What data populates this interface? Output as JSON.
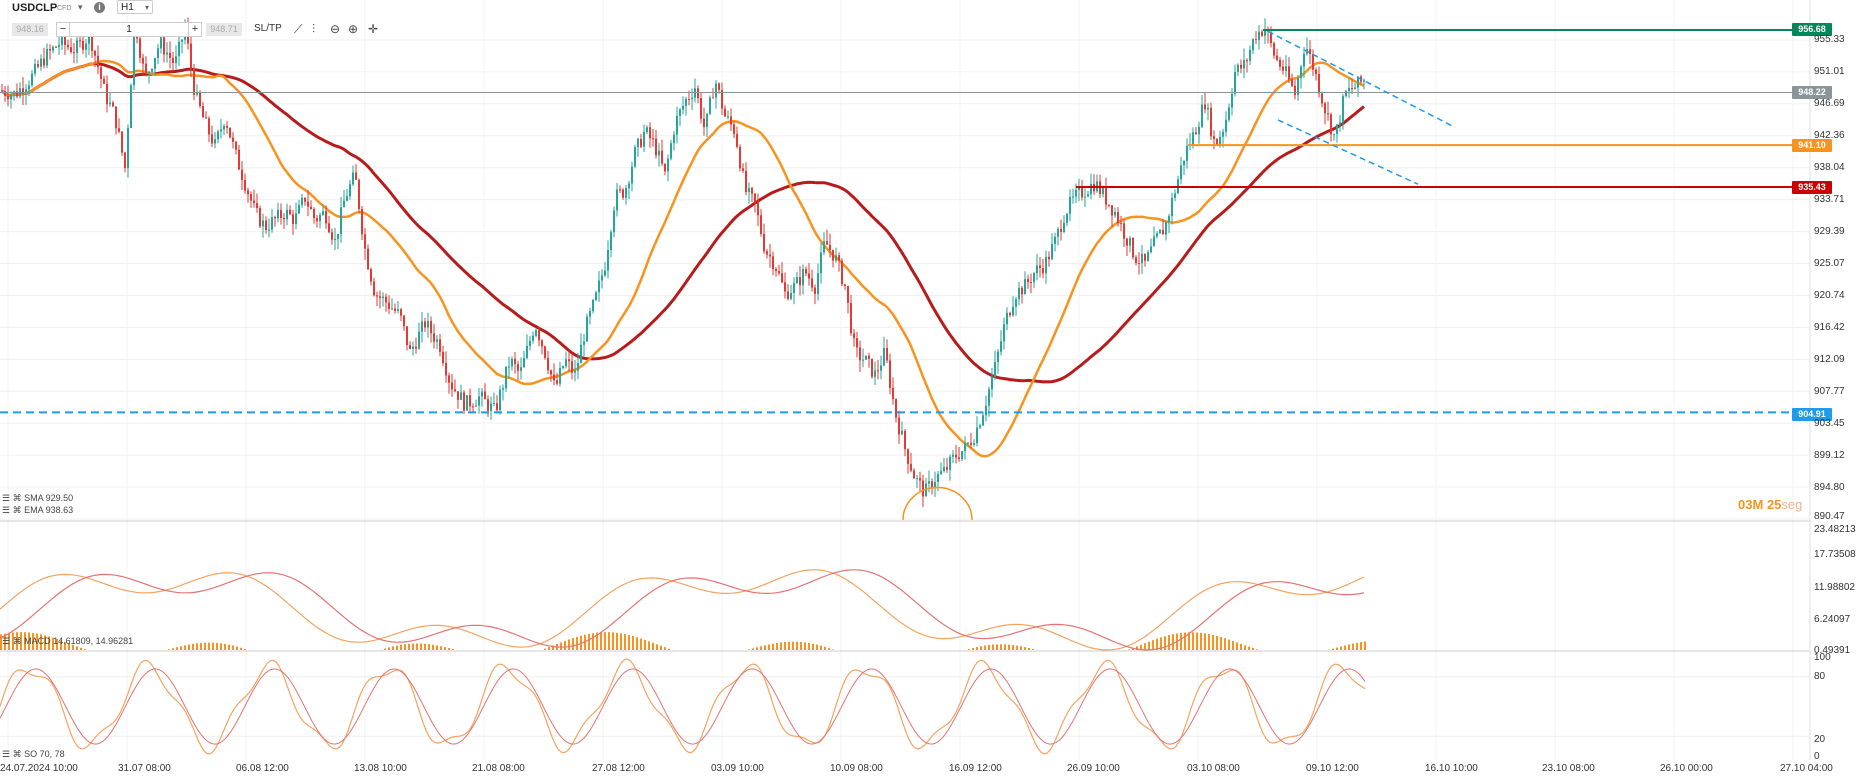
{
  "toolbar": {
    "symbol": "USDCLP",
    "symbol_sub": "CFD",
    "timeframe": "H1",
    "quantity": "1",
    "bid_btn": "948.16",
    "ask_btn": "948.71",
    "sltp_label": "SL/TP",
    "icons": [
      "chart-type-icon",
      "indicators-icon",
      "zoom-out-icon",
      "zoom-in-icon",
      "crosshair-icon"
    ]
  },
  "colors": {
    "bull": "#26a69a",
    "bear": "#e53935",
    "sma": "#b71c1c",
    "ema": "#f7931e",
    "blue_line": "#1e9be9",
    "green_line": "#00875a",
    "current_price": "#8a9499"
  },
  "price_levels": [
    {
      "name": "resistance-high",
      "value": "956.68",
      "color": "#00875a"
    },
    {
      "name": "current-price",
      "value": "948.22",
      "color": "#8a9499"
    },
    {
      "name": "orange-level",
      "value": "941.10",
      "color": "#f7931e"
    },
    {
      "name": "red-level",
      "value": "935.43",
      "color": "#cc0000"
    },
    {
      "name": "blue-support",
      "value": "904.91",
      "color": "#1e9be9"
    }
  ],
  "timer": {
    "minutes": "03",
    "minutes_unit": "M",
    "seconds": "25",
    "seconds_unit": "seg"
  },
  "indicators": {
    "sma_label": "SMA 929.50",
    "ema_label": "EMA 938.63",
    "macd_label": "MACD 14.61809, 14.96281",
    "so_label": "SO 70, 78"
  },
  "chart_data": [
    {
      "type": "candlestick",
      "title": "USDCLP H1",
      "y_ticks": [
        "955.33",
        "951.01",
        "946.69",
        "942.36",
        "938.04",
        "933.71",
        "929.39",
        "925.07",
        "920.74",
        "916.42",
        "912.09",
        "907.77",
        "903.45",
        "899.12",
        "894.80",
        "890.47"
      ],
      "ylim": [
        890.47,
        958.0
      ],
      "x_ticks": [
        "24.07.2024 10:00",
        "31.07 08:00",
        "06.08 12:00",
        "13.08 10:00",
        "21.08 08:00",
        "27.08 12:00",
        "03.09 10:00",
        "10.09 08:00",
        "16.09 12:00",
        "26.09 10:00",
        "03.10 08:00",
        "09.10 12:00",
        "16.10 10:00",
        "23.10 08:00",
        "26.10 00:00",
        "27.10 04:00"
      ],
      "series": [
        {
          "name": "SMA",
          "value": 929.5
        },
        {
          "name": "EMA",
          "value": 938.63
        }
      ],
      "close_path": [
        [
          0,
          948.5
        ],
        [
          15,
          948
        ],
        [
          30,
          950
        ],
        [
          45,
          953
        ],
        [
          60,
          955
        ],
        [
          75,
          954
        ],
        [
          90,
          956
        ],
        [
          105,
          948
        ],
        [
          115,
          945
        ],
        [
          125,
          938
        ],
        [
          135,
          958
        ],
        [
          145,
          950
        ],
        [
          160,
          955
        ],
        [
          175,
          952
        ],
        [
          185,
          957
        ],
        [
          195,
          948
        ],
        [
          205,
          944
        ],
        [
          215,
          941
        ],
        [
          225,
          945
        ],
        [
          235,
          940
        ],
        [
          245,
          936
        ],
        [
          255,
          932
        ],
        [
          265,
          930
        ],
        [
          275,
          931
        ],
        [
          285,
          932
        ],
        [
          295,
          931
        ],
        [
          305,
          934
        ],
        [
          315,
          931
        ],
        [
          325,
          932
        ],
        [
          335,
          928
        ],
        [
          345,
          934
        ],
        [
          355,
          937
        ],
        [
          365,
          927
        ],
        [
          375,
          921
        ],
        [
          385,
          920
        ],
        [
          400,
          918
        ],
        [
          410,
          913
        ],
        [
          425,
          917
        ],
        [
          440,
          914
        ],
        [
          450,
          909
        ],
        [
          465,
          906
        ],
        [
          480,
          907
        ],
        [
          495,
          905
        ],
        [
          510,
          912
        ],
        [
          520,
          910
        ],
        [
          535,
          917
        ],
        [
          545,
          913
        ],
        [
          555,
          908
        ],
        [
          565,
          912
        ],
        [
          575,
          910
        ],
        [
          585,
          916
        ],
        [
          595,
          920
        ],
        [
          605,
          925
        ],
        [
          615,
          934
        ],
        [
          625,
          935
        ],
        [
          635,
          940
        ],
        [
          645,
          943
        ],
        [
          655,
          941
        ],
        [
          665,
          937
        ],
        [
          675,
          944
        ],
        [
          685,
          947
        ],
        [
          695,
          949
        ],
        [
          705,
          943
        ],
        [
          715,
          950
        ],
        [
          725,
          945
        ],
        [
          735,
          943
        ],
        [
          745,
          935
        ],
        [
          755,
          933
        ],
        [
          765,
          927
        ],
        [
          775,
          925
        ],
        [
          785,
          921
        ],
        [
          795,
          922
        ],
        [
          805,
          924
        ],
        [
          815,
          922
        ],
        [
          825,
          928
        ],
        [
          835,
          926
        ],
        [
          845,
          922
        ],
        [
          855,
          913
        ],
        [
          865,
          912
        ],
        [
          875,
          910
        ],
        [
          885,
          913
        ],
        [
          895,
          905
        ],
        [
          905,
          900
        ],
        [
          915,
          896
        ],
        [
          925,
          894
        ],
        [
          935,
          896
        ],
        [
          945,
          897
        ],
        [
          955,
          899
        ],
        [
          965,
          900
        ],
        [
          975,
          902
        ],
        [
          985,
          906
        ],
        [
          995,
          911
        ],
        [
          1005,
          917
        ],
        [
          1015,
          921
        ],
        [
          1025,
          922
        ],
        [
          1035,
          924
        ],
        [
          1045,
          925
        ],
        [
          1055,
          928
        ],
        [
          1065,
          932
        ],
        [
          1075,
          934
        ],
        [
          1085,
          935
        ],
        [
          1095,
          936
        ],
        [
          1105,
          934
        ],
        [
          1115,
          932
        ],
        [
          1125,
          929
        ],
        [
          1135,
          926
        ],
        [
          1145,
          925
        ],
        [
          1155,
          928
        ],
        [
          1165,
          930
        ],
        [
          1175,
          935
        ],
        [
          1185,
          940
        ],
        [
          1195,
          943
        ],
        [
          1205,
          947
        ],
        [
          1215,
          941
        ],
        [
          1225,
          944
        ],
        [
          1235,
          951
        ],
        [
          1245,
          952
        ],
        [
          1255,
          956
        ],
        [
          1265,
          957
        ],
        [
          1275,
          953
        ],
        [
          1285,
          951
        ],
        [
          1295,
          948
        ],
        [
          1305,
          955
        ],
        [
          1315,
          951
        ],
        [
          1325,
          946
        ],
        [
          1335,
          942
        ],
        [
          1345,
          948
        ],
        [
          1355,
          949
        ],
        [
          1365,
          950
        ]
      ]
    },
    {
      "type": "line",
      "name": "MACD",
      "y_ticks": [
        "23.48213",
        "17.73508",
        "11.98802",
        "6.24097",
        "0.49391"
      ],
      "ylim": [
        0.49391,
        23.48213
      ],
      "last": [
        14.61809,
        14.96281
      ]
    },
    {
      "type": "line",
      "name": "SO",
      "y_ticks": [
        "100",
        "80",
        "20",
        "0"
      ],
      "ylim": [
        0,
        100
      ],
      "last": [
        70,
        78
      ]
    }
  ]
}
